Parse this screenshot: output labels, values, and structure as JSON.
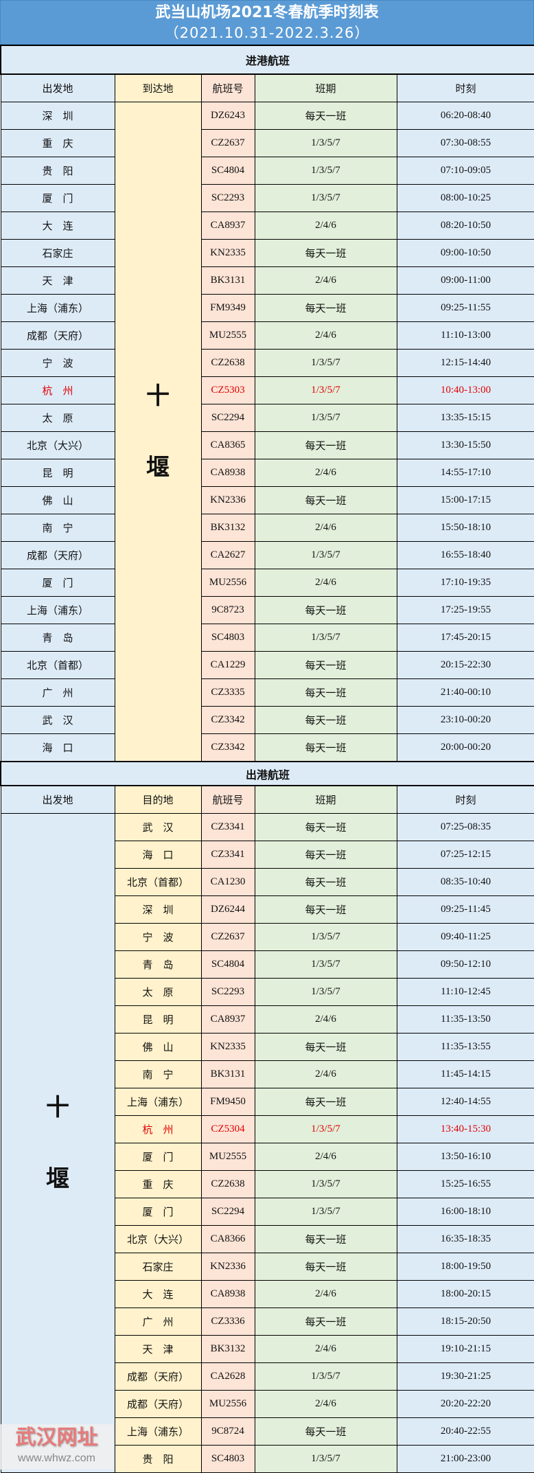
{
  "title": {
    "line1": "武当山机场2021冬春航季时刻表",
    "line2": "（2021.10.31-2022.3.26）"
  },
  "colors": {
    "header_bg": "#5b9bd5",
    "blue": "#ddebf7",
    "yellow": "#fff2cc",
    "pink": "#fce4d6",
    "green": "#e2efda",
    "highlight": "#e00000"
  },
  "arrivals": {
    "section_label": "进港航班",
    "headers": [
      "出发地",
      "到达地",
      "航班号",
      "班期",
      "时刻"
    ],
    "destination": [
      "十",
      "堰"
    ],
    "rows": [
      {
        "city": "深　圳",
        "flight": "DZ6243",
        "days": "每天一班",
        "time": "06:20-08:40"
      },
      {
        "city": "重　庆",
        "flight": "CZ2637",
        "days": "1/3/5/7",
        "time": "07:30-08:55"
      },
      {
        "city": "贵　阳",
        "flight": "SC4804",
        "days": "1/3/5/7",
        "time": "07:10-09:05"
      },
      {
        "city": "厦　门",
        "flight": "SC2293",
        "days": "1/3/5/7",
        "time": "08:00-10:25"
      },
      {
        "city": "大　连",
        "flight": "CA8937",
        "days": "2/4/6",
        "time": "08:20-10:50"
      },
      {
        "city": "石家庄",
        "flight": "KN2335",
        "days": "每天一班",
        "time": "09:00-10:50"
      },
      {
        "city": "天　津",
        "flight": "BK3131",
        "days": "2/4/6",
        "time": "09:00-11:00"
      },
      {
        "city": "上海（浦东）",
        "flight": "FM9349",
        "days": "每天一班",
        "time": "09:25-11:55"
      },
      {
        "city": "成都（天府）",
        "flight": "MU2555",
        "days": "2/4/6",
        "time": "11:10-13:00"
      },
      {
        "city": "宁　波",
        "flight": "CZ2638",
        "days": "1/3/5/7",
        "time": "12:15-14:40"
      },
      {
        "city": "杭　州",
        "flight": "CZ5303",
        "days": "1/3/5/7",
        "time": "10:40-13:00",
        "highlight": true
      },
      {
        "city": "太　原",
        "flight": "SC2294",
        "days": "1/3/5/7",
        "time": "13:35-15:15"
      },
      {
        "city": "北京（大兴）",
        "flight": "CA8365",
        "days": "每天一班",
        "time": "13:30-15:50"
      },
      {
        "city": "昆　明",
        "flight": "CA8938",
        "days": "2/4/6",
        "time": "14:55-17:10"
      },
      {
        "city": "佛　山",
        "flight": "KN2336",
        "days": "每天一班",
        "time": "15:00-17:15"
      },
      {
        "city": "南　宁",
        "flight": "BK3132",
        "days": "2/4/6",
        "time": "15:50-18:10"
      },
      {
        "city": "成都（天府）",
        "flight": "CA2627",
        "days": "1/3/5/7",
        "time": "16:55-18:40"
      },
      {
        "city": "厦　门",
        "flight": "MU2556",
        "days": "2/4/6",
        "time": "17:10-19:35"
      },
      {
        "city": "上海（浦东）",
        "flight": "9C8723",
        "days": "每天一班",
        "time": "17:25-19:55"
      },
      {
        "city": "青　岛",
        "flight": "SC4803",
        "days": "1/3/5/7",
        "time": "17:45-20:15"
      },
      {
        "city": "北京（首都）",
        "flight": "CA1229",
        "days": "每天一班",
        "time": "20:15-22:30"
      },
      {
        "city": "广　州",
        "flight": "CZ3335",
        "days": "每天一班",
        "time": "21:40-00:10"
      },
      {
        "city": "武　汉",
        "flight": "CZ3342",
        "days": "每天一班",
        "time": "23:10-00:20"
      },
      {
        "city": "海　口",
        "flight": "CZ3342",
        "days": "每天一班",
        "time": "20:00-00:20"
      }
    ]
  },
  "departures": {
    "section_label": "出港航班",
    "headers": [
      "出发地",
      "目的地",
      "航班号",
      "班期",
      "时刻"
    ],
    "origin": [
      "十",
      "堰"
    ],
    "rows": [
      {
        "city": "武　汉",
        "flight": "CZ3341",
        "days": "每天一班",
        "time": "07:25-08:35"
      },
      {
        "city": "海　口",
        "flight": "CZ3341",
        "days": "每天一班",
        "time": "07:25-12:15"
      },
      {
        "city": "北京（首都）",
        "flight": "CA1230",
        "days": "每天一班",
        "time": "08:35-10:40"
      },
      {
        "city": "深　圳",
        "flight": "DZ6244",
        "days": "每天一班",
        "time": "09:25-11:45"
      },
      {
        "city": "宁　波",
        "flight": "CZ2637",
        "days": "1/3/5/7",
        "time": "09:40-11:25"
      },
      {
        "city": "青　岛",
        "flight": "SC4804",
        "days": "1/3/5/7",
        "time": "09:50-12:10"
      },
      {
        "city": "太　原",
        "flight": "SC2293",
        "days": "1/3/5/7",
        "time": "11:10-12:45"
      },
      {
        "city": "昆　明",
        "flight": "CA8937",
        "days": "2/4/6",
        "time": "11:35-13:50"
      },
      {
        "city": "佛　山",
        "flight": "KN2335",
        "days": "每天一班",
        "time": "11:35-13:55"
      },
      {
        "city": "南　宁",
        "flight": "BK3131",
        "days": "2/4/6",
        "time": "11:45-14:15"
      },
      {
        "city": "上海（浦东）",
        "flight": "FM9450",
        "days": "每天一班",
        "time": "12:40-14:55"
      },
      {
        "city": "杭　州",
        "flight": "CZ5304",
        "days": "1/3/5/7",
        "time": "13:40-15:30",
        "highlight": true
      },
      {
        "city": "厦　门",
        "flight": "MU2555",
        "days": "2/4/6",
        "time": "13:50-16:10"
      },
      {
        "city": "重　庆",
        "flight": "CZ2638",
        "days": "1/3/5/7",
        "time": "15:25-16:55"
      },
      {
        "city": "厦　门",
        "flight": "SC2294",
        "days": "1/3/5/7",
        "time": "16:00-18:10"
      },
      {
        "city": "北京（大兴）",
        "flight": "CA8366",
        "days": "每天一班",
        "time": "16:35-18:35"
      },
      {
        "city": "石家庄",
        "flight": "KN2336",
        "days": "每天一班",
        "time": "18:00-19:50"
      },
      {
        "city": "大　连",
        "flight": "CA8938",
        "days": "2/4/6",
        "time": "18:00-20:15"
      },
      {
        "city": "广　州",
        "flight": "CZ3336",
        "days": "每天一班",
        "time": "18:15-20:50"
      },
      {
        "city": "天　津",
        "flight": "BK3132",
        "days": "2/4/6",
        "time": "19:10-21:15"
      },
      {
        "city": "成都（天府）",
        "flight": "CA2628",
        "days": "1/3/5/7",
        "time": "19:30-21:25"
      },
      {
        "city": "成都（天府）",
        "flight": "MU2556",
        "days": "2/4/6",
        "time": "20:20-22:20"
      },
      {
        "city": "上海（浦东）",
        "flight": "9C8724",
        "days": "每天一班",
        "time": "20:40-22:55"
      },
      {
        "city": "贵　阳",
        "flight": "SC4803",
        "days": "1/3/5/7",
        "time": "21:00-23:00"
      }
    ]
  },
  "watermark": {
    "name": "武汉网址",
    "url": "www.whwz.com"
  }
}
